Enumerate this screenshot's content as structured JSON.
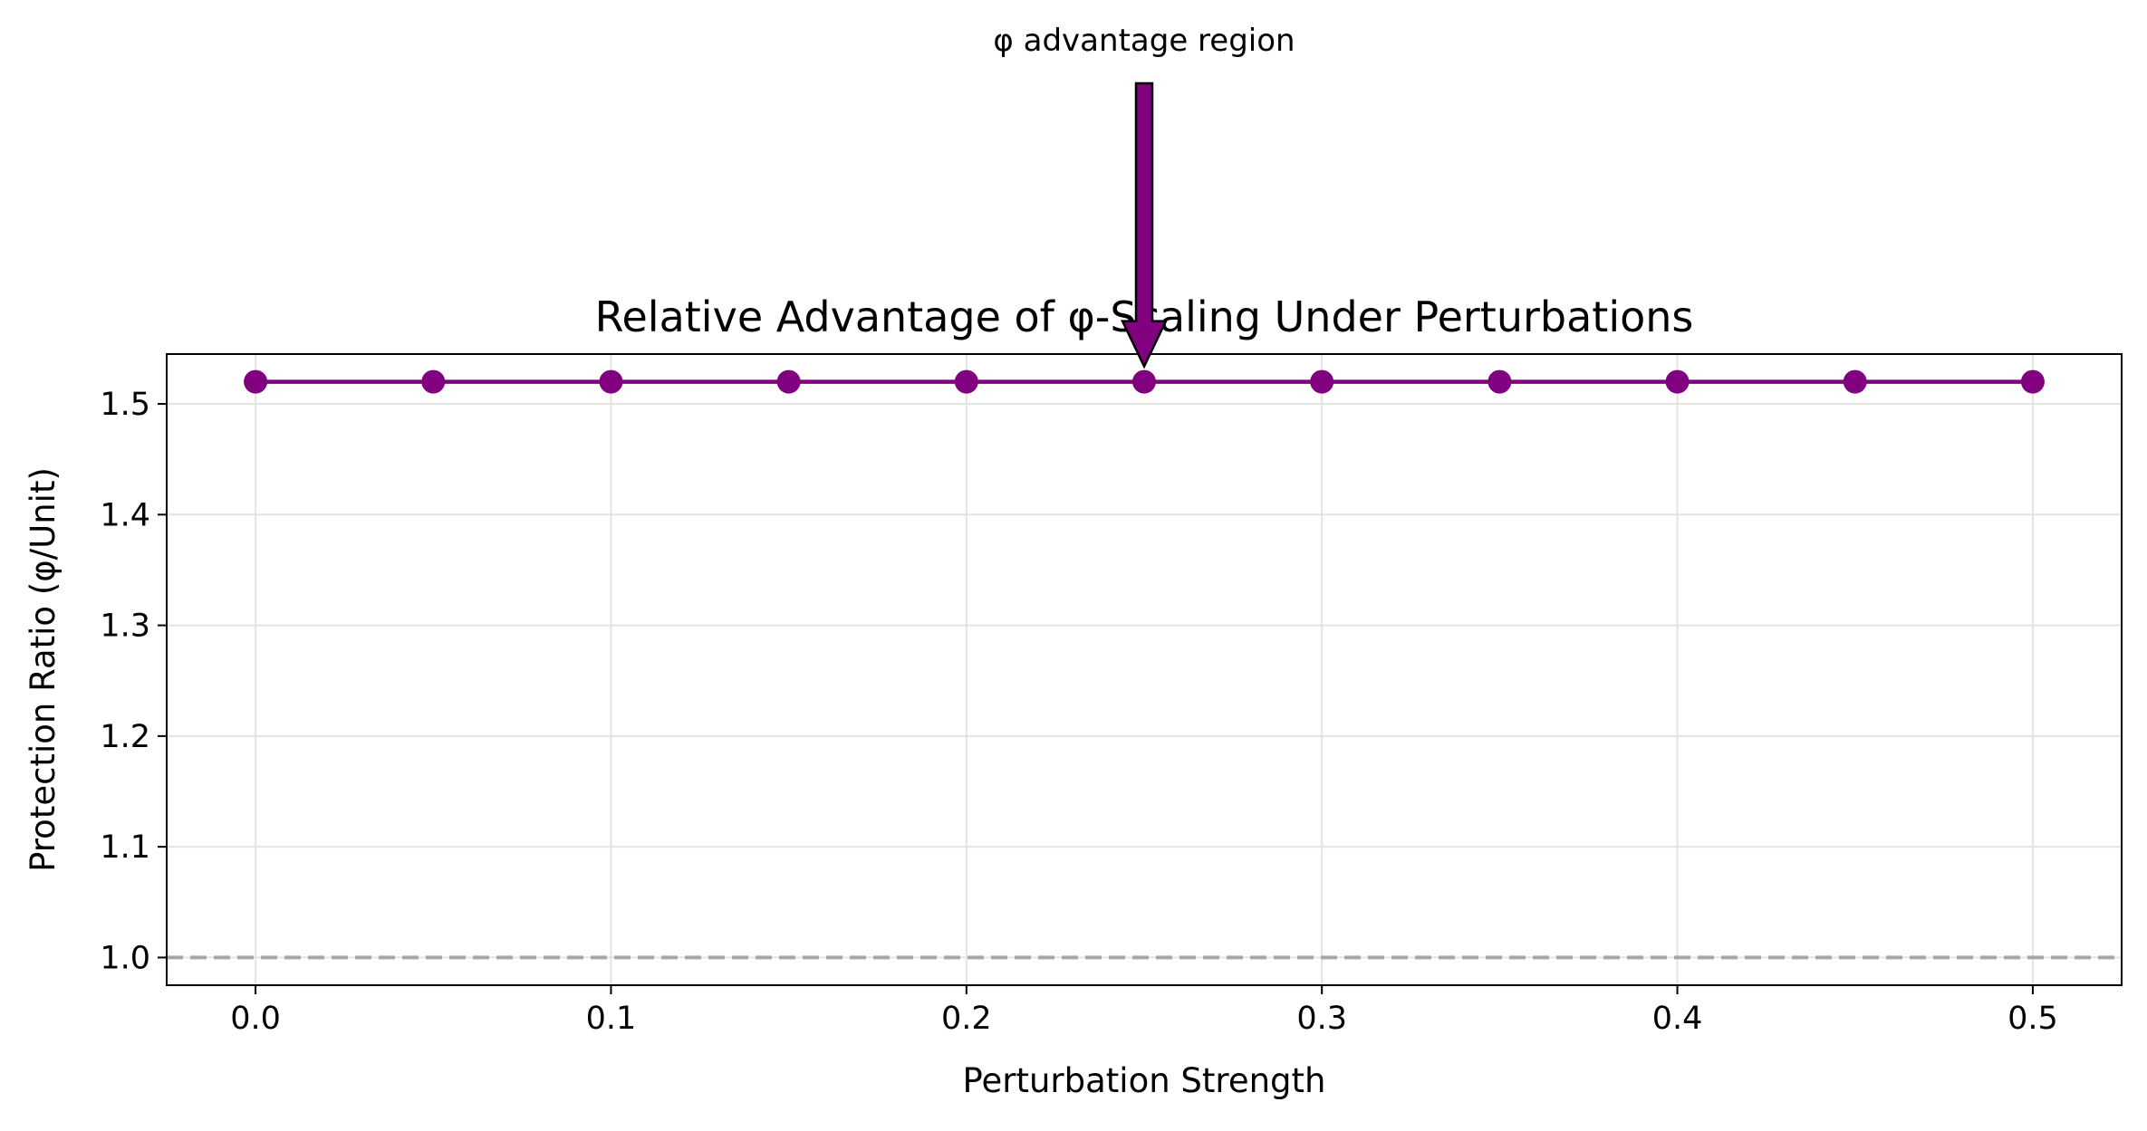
{
  "chart_data": {
    "type": "line",
    "title": "Relative Advantage of φ-Scaling Under Perturbations",
    "xlabel": "Perturbation Strength",
    "ylabel": "Protection Ratio (φ/Unit)",
    "x": [
      0.0,
      0.05,
      0.1,
      0.15,
      0.2,
      0.25,
      0.3,
      0.35,
      0.4,
      0.45,
      0.5
    ],
    "series": [
      {
        "values": [
          1.52,
          1.52,
          1.52,
          1.52,
          1.52,
          1.52,
          1.52,
          1.52,
          1.52,
          1.52,
          1.52
        ],
        "color": "#800080"
      }
    ],
    "xlim": [
      -0.025,
      0.525
    ],
    "ylim": [
      0.975,
      1.545
    ],
    "xticks": [
      0.0,
      0.1,
      0.2,
      0.3,
      0.4,
      0.5
    ],
    "xtick_labels": [
      "0.0",
      "0.1",
      "0.2",
      "0.3",
      "0.4",
      "0.5"
    ],
    "yticks": [
      1.0,
      1.1,
      1.2,
      1.3,
      1.4,
      1.5
    ],
    "ytick_labels": [
      "1.0",
      "1.1",
      "1.2",
      "1.3",
      "1.4",
      "1.5"
    ],
    "grid": true,
    "reference_line": {
      "y": 1.0,
      "style": "dashed",
      "color": "#a6a6a6"
    },
    "annotation": {
      "text": "φ advantage region",
      "x": 0.25,
      "y": 1.52,
      "arrow_color": "#800080"
    }
  }
}
